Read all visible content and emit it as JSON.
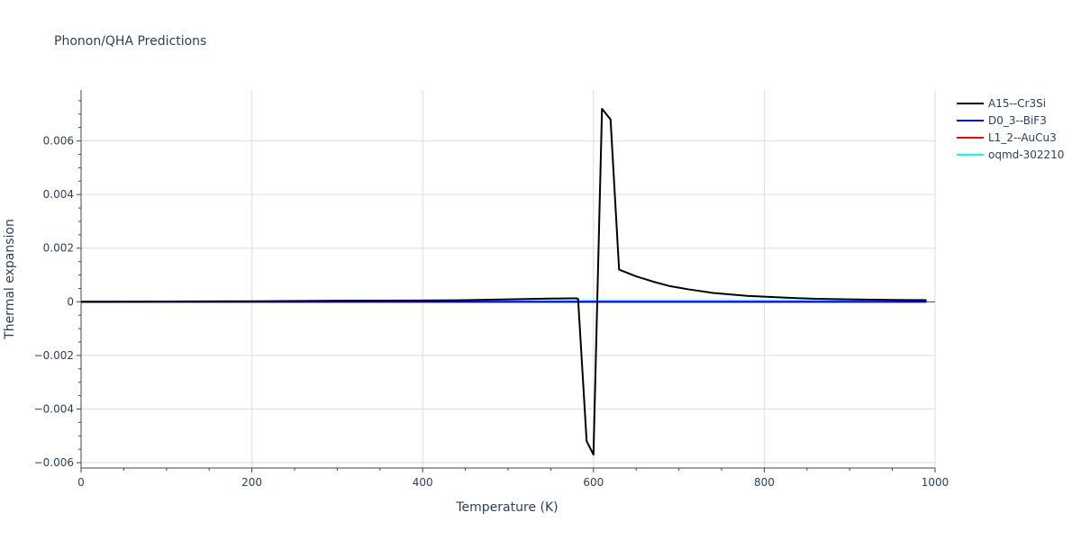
{
  "chart_data": {
    "type": "line",
    "title": "Phonon/QHA Predictions",
    "xlabel": "Temperature (K)",
    "ylabel": "Thermal expansion",
    "xlim": [
      0,
      1000
    ],
    "ylim": [
      -0.0062,
      0.0079
    ],
    "grid": true,
    "legend_position": "right",
    "x_ticks": [
      0,
      200,
      400,
      600,
      800,
      1000
    ],
    "x_tick_labels": [
      "0",
      "200",
      "400",
      "600",
      "800",
      "1000"
    ],
    "y_ticks": [
      -0.006,
      -0.004,
      -0.002,
      0,
      0.002,
      0.004,
      0.006
    ],
    "y_tick_labels": [
      "−0.006",
      "−0.004",
      "−0.002",
      "0",
      "0.002",
      "0.004",
      "0.006"
    ],
    "series": [
      {
        "name": "A15--Cr3Si",
        "color": "#000000",
        "x": [
          0,
          100,
          200,
          300,
          400,
          450,
          500,
          550,
          580,
          582,
          592,
          600,
          610,
          620,
          630,
          650,
          670,
          690,
          710,
          740,
          780,
          820,
          860,
          900,
          950,
          990
        ],
        "y": [
          0.0,
          1e-05,
          2e-05,
          4e-05,
          5e-05,
          6e-05,
          9e-05,
          0.00012,
          0.00013,
          0.0001,
          -0.0052,
          -0.0057,
          0.0072,
          0.0068,
          0.0012,
          0.00095,
          0.00075,
          0.00058,
          0.00047,
          0.00033,
          0.00022,
          0.00016,
          0.00011,
          9e-05,
          7e-05,
          6e-05
        ]
      },
      {
        "name": "D0_3--BiF3",
        "color": "#0000ff",
        "x": [
          0,
          200,
          400,
          600,
          800,
          990
        ],
        "y": [
          0.0,
          0.0,
          0.0,
          0.0,
          0.0,
          0.0
        ]
      },
      {
        "name": "L1_2--AuCu3",
        "color": "#ff0000",
        "x": [
          0,
          200,
          400,
          600,
          800,
          990
        ],
        "y": [
          0.0,
          0.0,
          0.0,
          0.0,
          0.0,
          0.0
        ]
      },
      {
        "name": "oqmd-302210",
        "color": "#00ffff",
        "x": [
          0,
          100,
          200,
          300,
          400,
          500,
          600,
          700,
          800,
          900,
          990
        ],
        "y": [
          1e-05,
          1e-05,
          1e-05,
          2e-05,
          2e-05,
          2e-05,
          3e-05,
          3e-05,
          3e-05,
          3e-05,
          3e-05
        ]
      }
    ]
  }
}
